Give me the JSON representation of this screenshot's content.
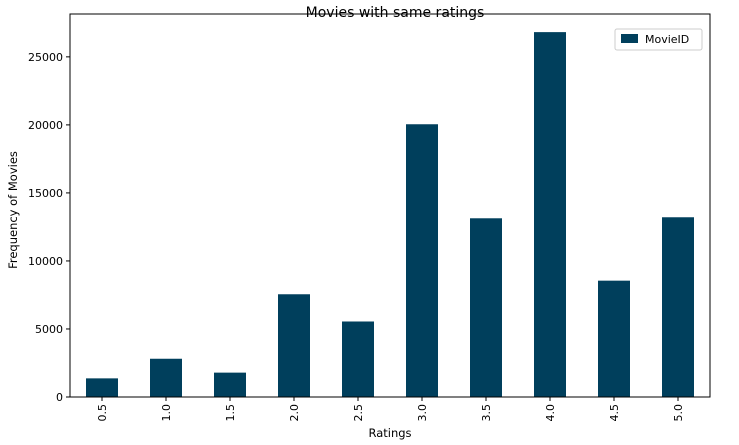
{
  "chart_data": {
    "type": "bar",
    "title": "Movies with same ratings",
    "xlabel": "Ratings",
    "ylabel": "Frequency of Movies",
    "categories": [
      "0.5",
      "1.0",
      "1.5",
      "2.0",
      "2.5",
      "3.0",
      "3.5",
      "4.0",
      "4.5",
      "5.0"
    ],
    "series": [
      {
        "name": "MovieID",
        "color": "#003f5c",
        "values": [
          1370,
          2811,
          1791,
          7551,
          5550,
          20047,
          13136,
          26818,
          8551,
          13211
        ]
      }
    ],
    "ylim": [
      0,
      28150
    ],
    "yticks": [
      0,
      5000,
      10000,
      15000,
      20000,
      25000
    ],
    "legend_position": "top-right",
    "grid": false
  }
}
